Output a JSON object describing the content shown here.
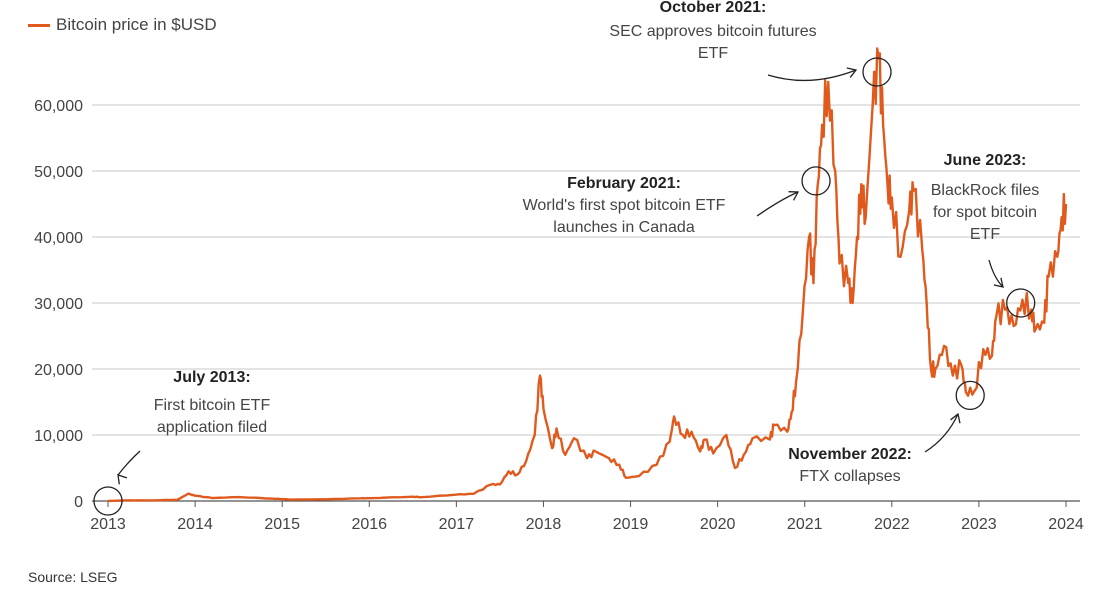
{
  "chart_data": {
    "type": "line",
    "title": "",
    "legend": "top-left",
    "legend_entries": [
      "Bitcoin price in $USD"
    ],
    "xlabel": "",
    "ylabel": "",
    "xlim": [
      2013,
      2024
    ],
    "ylim": [
      0,
      60000
    ],
    "x_ticks": [
      "2013",
      "2014",
      "2015",
      "2016",
      "2017",
      "2018",
      "2019",
      "2020",
      "2021",
      "2022",
      "2023",
      "2024"
    ],
    "y_ticks": [
      {
        "v": 0,
        "label": "0"
      },
      {
        "v": 10000,
        "label": "10,000"
      },
      {
        "v": 20000,
        "label": "20,000"
      },
      {
        "v": 30000,
        "label": "30,000"
      },
      {
        "v": 40000,
        "label": "40,000"
      },
      {
        "v": 50000,
        "label": "50,000"
      },
      {
        "v": 60000,
        "label": "60,000"
      }
    ],
    "grid": true,
    "color": "#e05a1e",
    "series": [
      {
        "name": "Bitcoin price in $USD",
        "x": [
          2013.0,
          2013.25,
          2013.5,
          2013.8,
          2013.92,
          2014.0,
          2014.2,
          2014.5,
          2014.9,
          2015.0,
          2015.1,
          2015.5,
          2015.9,
          2016.0,
          2016.5,
          2016.6,
          2016.99,
          2017.2,
          2017.4,
          2017.5,
          2017.6,
          2017.7,
          2017.8,
          2017.9,
          2017.96,
          2018.0,
          2018.1,
          2018.15,
          2018.25,
          2018.35,
          2018.5,
          2018.6,
          2018.75,
          2018.87,
          2018.95,
          2019.1,
          2019.3,
          2019.45,
          2019.5,
          2019.6,
          2019.7,
          2019.8,
          2019.85,
          2019.95,
          2020.1,
          2020.2,
          2020.3,
          2020.4,
          2020.6,
          2020.65,
          2020.8,
          2020.85,
          2020.9,
          2020.98,
          2021.05,
          2021.1,
          2021.15,
          2021.2,
          2021.27,
          2021.35,
          2021.4,
          2021.5,
          2021.55,
          2021.6,
          2021.65,
          2021.7,
          2021.78,
          2021.85,
          2021.9,
          2021.95,
          2022.0,
          2022.1,
          2022.2,
          2022.25,
          2022.35,
          2022.4,
          2022.45,
          2022.5,
          2022.6,
          2022.7,
          2022.8,
          2022.85,
          2022.95,
          2023.05,
          2023.15,
          2023.2,
          2023.3,
          2023.4,
          2023.5,
          2023.6,
          2023.65,
          2023.75,
          2023.8,
          2023.9,
          2023.95,
          2024.0
        ],
        "values": [
          13,
          100,
          90,
          200,
          1100,
          800,
          450,
          600,
          350,
          300,
          220,
          250,
          400,
          430,
          650,
          580,
          960,
          1100,
          2500,
          2500,
          4500,
          4000,
          6000,
          10000,
          19000,
          14000,
          8000,
          11000,
          7000,
          9500,
          6500,
          7500,
          6500,
          5500,
          3500,
          3800,
          5500,
          9000,
          12800,
          10000,
          10500,
          7500,
          9300,
          7200,
          10000,
          5000,
          7000,
          9500,
          9300,
          11500,
          10500,
          13500,
          18000,
          29000,
          40000,
          33000,
          48000,
          57000,
          63500,
          50000,
          36000,
          33000,
          30000,
          40000,
          48000,
          43000,
          60000,
          67000,
          57000,
          48000,
          46000,
          37000,
          44000,
          47000,
          38000,
          30000,
          20000,
          20000,
          23500,
          19000,
          20500,
          16500,
          16700,
          23000,
          22000,
          28000,
          29000,
          26500,
          30500,
          29000,
          26000,
          27000,
          34000,
          37000,
          43000,
          45000
        ]
      }
    ],
    "annotations": [
      {
        "title": "July 2013:",
        "lines": [
          "First bitcoin ETF",
          "application filed"
        ],
        "x": 2013.0,
        "y": 0
      },
      {
        "title": "October 2021:",
        "lines": [
          "SEC approves bitcoin futures",
          "ETF"
        ],
        "x": 2021.83,
        "y": 65000
      },
      {
        "title": "February 2021:",
        "lines": [
          "World's first spot bitcoin ETF",
          "launches in Canada"
        ],
        "x": 2021.13,
        "y": 48500
      },
      {
        "title": "June 2023:",
        "lines": [
          "BlackRock files",
          "for spot bitcoin",
          "ETF"
        ],
        "x": 2023.48,
        "y": 30000
      },
      {
        "title": "November 2022:",
        "lines": [
          "FTX collapses"
        ],
        "x": 2022.9,
        "y": 16000
      }
    ],
    "source": "Source: LSEG"
  }
}
